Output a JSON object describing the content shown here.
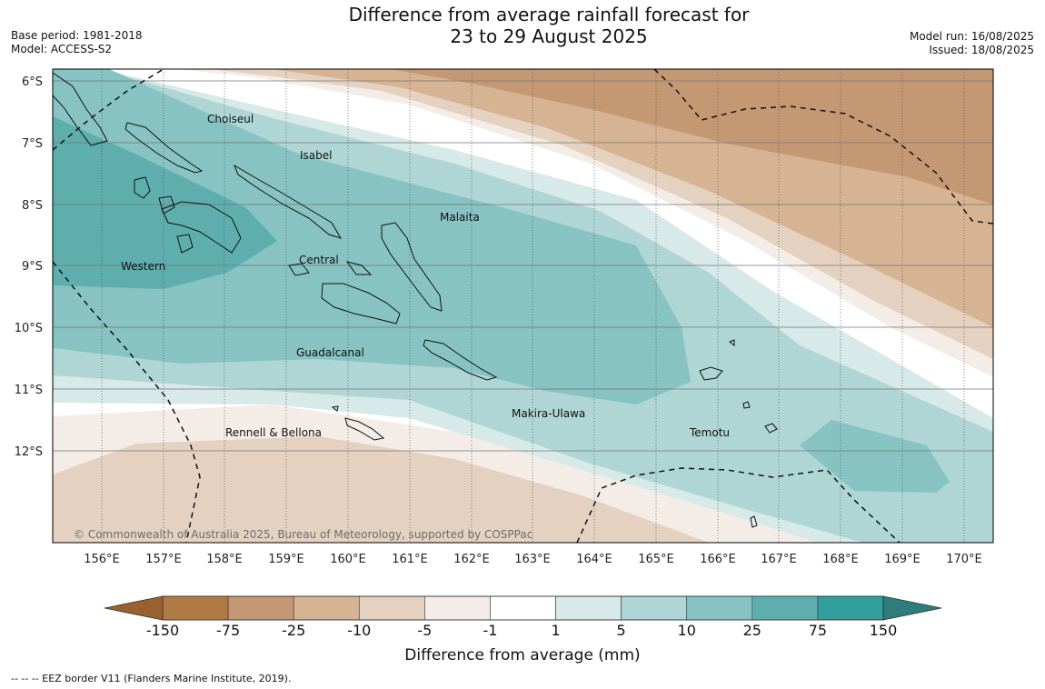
{
  "title_line1": "Difference from average rainfall forecast for",
  "title_line2": "23 to 29 August 2025",
  "base_period": "Base period: 1981-2018",
  "model": "Model: ACCESS-S2",
  "model_run": "Model run: 16/08/2025",
  "issued": "Issued: 18/08/2025",
  "copyright": "© Commonwealth of Australia 2025, Bureau of Meteorology, supported by COSPPac",
  "eez_note": "--  --  -- EEZ border V11 (Flanders Marine Institute, 2019).",
  "colorbar": {
    "title": "Difference from average (mm)",
    "ticks": [
      "-150",
      "-75",
      "-25",
      "-10",
      "-5",
      "-1",
      "1",
      "5",
      "10",
      "25",
      "75",
      "150"
    ],
    "colors": [
      "#996030",
      "#b07a44",
      "#c39872",
      "#d5b393",
      "#e4d1c0",
      "#f4ece6",
      "#ffffff",
      "#d7e9e8",
      "#afd6d5",
      "#86c3c2",
      "#5eaeae",
      "#339f9c",
      "#2d7d7c"
    ]
  },
  "map": {
    "lat_labels": [
      "6°S",
      "7°S",
      "8°S",
      "9°S",
      "10°S",
      "11°S",
      "12°S"
    ],
    "lon_labels": [
      "156°E",
      "157°E",
      "158°E",
      "159°E",
      "160°E",
      "161°E",
      "162°E",
      "163°E",
      "164°E",
      "165°E",
      "166°E",
      "167°E",
      "168°E",
      "169°E",
      "170°E"
    ],
    "provinces": [
      "Choiseul",
      "Isabel",
      "Malaita",
      "Western",
      "Central",
      "Guadalcanal",
      "Makira-Ulawa",
      "Rennell & Bellona",
      "Temotu"
    ]
  }
}
